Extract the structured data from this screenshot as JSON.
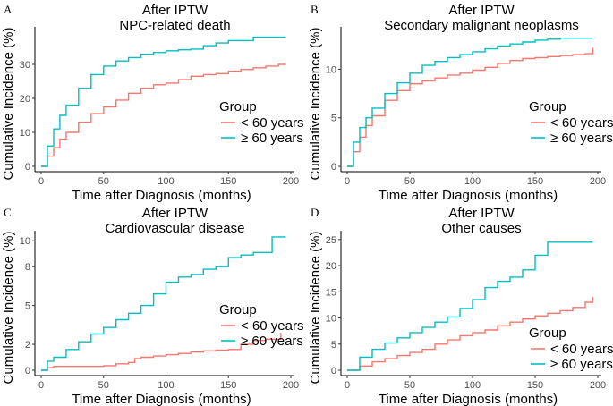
{
  "chart_data": [
    {
      "type": "line",
      "panel_label": "A",
      "title": "After IPTW",
      "subtitle": "NPC-related death",
      "xlabel": "Time after Diagnosis (months)",
      "ylabel": "Cumulative Incidence (%)",
      "xlim": [
        0,
        200
      ],
      "ylim": [
        0,
        40
      ],
      "xticks": [
        0,
        50,
        100,
        150,
        200
      ],
      "yticks": [
        0,
        10,
        20,
        30
      ],
      "legend_position": "right",
      "legend": {
        "title": "Group",
        "entries": [
          "< 60 years",
          "≥ 60 years"
        ]
      },
      "series": [
        {
          "name": "< 60 years",
          "color": "#F8766D",
          "x": [
            0,
            5,
            10,
            15,
            20,
            30,
            40,
            50,
            60,
            70,
            80,
            90,
            100,
            110,
            120,
            130,
            140,
            150,
            160,
            170,
            180,
            190,
            196
          ],
          "y": [
            0,
            3,
            5.5,
            8,
            10,
            13,
            15.5,
            17.5,
            19.5,
            21.5,
            23,
            24,
            24.5,
            25.5,
            26.5,
            27,
            27.3,
            28,
            28.5,
            29,
            29.5,
            30,
            30
          ]
        },
        {
          "name": "≥ 60 years",
          "color": "#00BFC4",
          "x": [
            0,
            5,
            10,
            15,
            20,
            30,
            40,
            50,
            60,
            70,
            80,
            90,
            100,
            110,
            120,
            130,
            140,
            150,
            160,
            170,
            180,
            190,
            196
          ],
          "y": [
            0,
            6,
            11,
            15,
            18,
            23,
            27,
            29.5,
            31,
            32,
            33,
            33.5,
            34,
            34.3,
            34.5,
            35.5,
            36.3,
            37,
            37,
            38,
            38,
            38,
            38
          ]
        }
      ]
    },
    {
      "type": "line",
      "panel_label": "B",
      "title": "After IPTW",
      "subtitle": "Secondary malignant neoplasms",
      "xlabel": "Time after Diagnosis (months)",
      "ylabel": "Cumulative Incidence (%)",
      "xlim": [
        0,
        200
      ],
      "ylim": [
        0,
        14
      ],
      "xticks": [
        0,
        50,
        100,
        150,
        200
      ],
      "yticks": [
        0,
        5,
        10
      ],
      "legend_position": "right",
      "legend": {
        "title": "Group",
        "entries": [
          "< 60 years",
          "≥ 60 years"
        ]
      },
      "series": [
        {
          "name": "< 60 years",
          "color": "#F8766D",
          "x": [
            0,
            5,
            10,
            15,
            20,
            30,
            40,
            50,
            60,
            70,
            80,
            90,
            100,
            110,
            120,
            130,
            140,
            150,
            160,
            170,
            180,
            190,
            196,
            196
          ],
          "y": [
            0,
            1.5,
            3,
            4.2,
            5.2,
            6.8,
            7.8,
            8.5,
            8.8,
            9.1,
            9.4,
            9.6,
            9.9,
            10.2,
            10.6,
            10.9,
            11.1,
            11.2,
            11.3,
            11.4,
            11.5,
            11.6,
            11.6,
            12.2
          ]
        },
        {
          "name": "≥ 60 years",
          "color": "#00BFC4",
          "x": [
            0,
            5,
            10,
            15,
            20,
            30,
            40,
            50,
            60,
            70,
            80,
            90,
            100,
            110,
            120,
            130,
            140,
            150,
            160,
            170,
            180,
            190,
            196
          ],
          "y": [
            0,
            2.5,
            4,
            5,
            6,
            7.5,
            8.6,
            9.6,
            10.4,
            10.8,
            11.2,
            11.5,
            11.8,
            12.1,
            12.4,
            12.6,
            12.8,
            13,
            13.1,
            13.2,
            13.2,
            13.2,
            13.2
          ]
        }
      ]
    },
    {
      "type": "line",
      "panel_label": "C",
      "title": "After IPTW",
      "subtitle": "Cardiovascular disease",
      "xlabel": "Time after Diagnosis (months)",
      "ylabel": "Cumulative Incidence (%)",
      "xlim": [
        0,
        200
      ],
      "ylim": [
        0,
        10.5
      ],
      "xticks": [
        0,
        50,
        100,
        150,
        200
      ],
      "yticks": [
        0,
        2,
        5,
        8,
        10
      ],
      "legend_position": "right",
      "legend": {
        "title": "Group",
        "entries": [
          "< 60 years",
          "≥ 60 years"
        ]
      },
      "series": [
        {
          "name": "< 60 years",
          "color": "#F8766D",
          "x": [
            0,
            5,
            10,
            30,
            50,
            60,
            70,
            75,
            80,
            90,
            100,
            110,
            120,
            130,
            140,
            150,
            160,
            170,
            180,
            190,
            192
          ],
          "y": [
            0,
            0.2,
            0.3,
            0.3,
            0.35,
            0.5,
            0.6,
            0.9,
            1.0,
            1.1,
            1.2,
            1.3,
            1.4,
            1.5,
            1.55,
            1.6,
            2.0,
            2.3,
            2.4,
            2.4,
            2.9
          ]
        },
        {
          "name": "≥ 60 years",
          "color": "#00BFC4",
          "x": [
            0,
            5,
            10,
            20,
            30,
            40,
            50,
            60,
            70,
            80,
            90,
            100,
            110,
            120,
            130,
            140,
            150,
            160,
            170,
            180,
            185,
            196
          ],
          "y": [
            0,
            0.7,
            1.0,
            1.6,
            2.2,
            2.8,
            3.3,
            3.9,
            4.4,
            5.0,
            5.9,
            6.8,
            7.2,
            7.4,
            7.8,
            8.0,
            8.7,
            8.9,
            9.1,
            9.1,
            10.3,
            10.3
          ]
        }
      ]
    },
    {
      "type": "line",
      "panel_label": "D",
      "title": "After IPTW",
      "subtitle": "Other causes",
      "xlabel": "Time after Diagnosis (months)",
      "ylabel": "Cumulative Incidence (%)",
      "xlim": [
        0,
        200
      ],
      "ylim": [
        0,
        26
      ],
      "xticks": [
        0,
        50,
        100,
        150,
        200
      ],
      "yticks": [
        0,
        5,
        10,
        15,
        20,
        25
      ],
      "legend_position": "right",
      "legend": {
        "title": "Group",
        "entries": [
          "< 60 years",
          "≥ 60 years"
        ]
      },
      "series": [
        {
          "name": "< 60 years",
          "color": "#F8766D",
          "x": [
            0,
            10,
            20,
            30,
            40,
            50,
            60,
            70,
            80,
            90,
            100,
            110,
            120,
            130,
            140,
            150,
            160,
            170,
            180,
            190,
            196
          ],
          "y": [
            0,
            0.8,
            1.6,
            2.2,
            2.8,
            3.4,
            4.0,
            5.0,
            5.8,
            6.6,
            7.2,
            7.7,
            8.5,
            9.2,
            9.8,
            10.4,
            10.9,
            11.4,
            12.0,
            13.0,
            14.0
          ]
        },
        {
          "name": "≥ 60 years",
          "color": "#00BFC4",
          "x": [
            0,
            10,
            20,
            30,
            40,
            50,
            60,
            70,
            80,
            90,
            100,
            110,
            120,
            130,
            140,
            150,
            160,
            170,
            180,
            190,
            196
          ],
          "y": [
            0,
            2.5,
            4.0,
            5.2,
            6.2,
            7.2,
            8.2,
            9.2,
            10.2,
            11.8,
            13.5,
            15.8,
            17.0,
            17.8,
            19.2,
            22.0,
            24.5,
            24.5,
            24.5,
            24.5,
            24.5
          ]
        }
      ]
    }
  ]
}
